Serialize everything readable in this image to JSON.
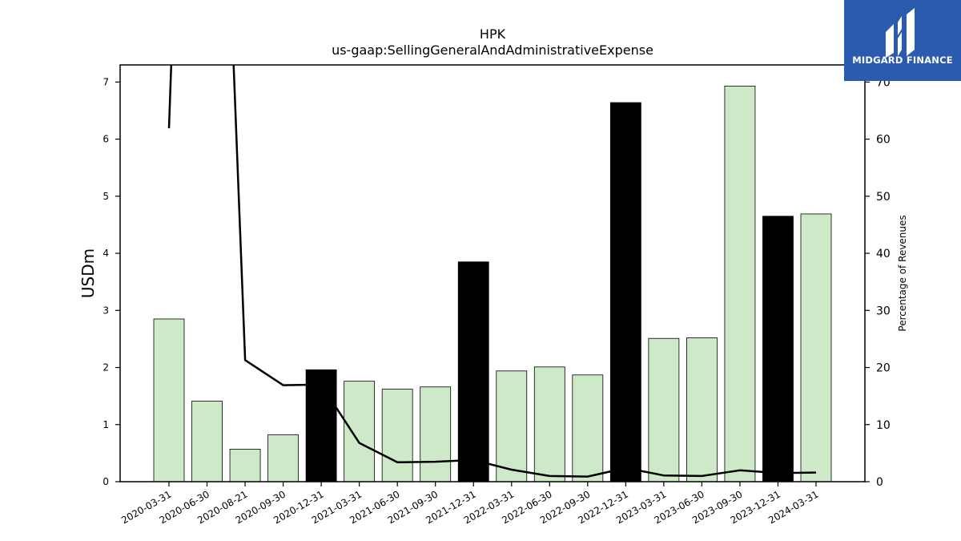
{
  "chart_data": {
    "type": "bar",
    "title": "HPK",
    "subtitle": "us-gaap:SellingGeneralAndAdministrativeExpense",
    "ylabel": "USDm",
    "y2label": "Percentage of Revenues",
    "ylim": [
      0,
      7.3
    ],
    "y2lim": [
      0,
      73
    ],
    "yticks": [
      0,
      1,
      2,
      3,
      4,
      5,
      6,
      7
    ],
    "y2ticks": [
      0,
      10,
      20,
      30,
      40,
      50,
      60,
      70
    ],
    "categories": [
      "2020-03-31",
      "2020-06-30",
      "2020-08-21",
      "2020-09-30",
      "2020-12-31",
      "2021-03-31",
      "2021-06-30",
      "2021-09-30",
      "2021-12-31",
      "2022-03-31",
      "2022-06-30",
      "2022-09-30",
      "2022-12-31",
      "2023-03-31",
      "2023-06-30",
      "2023-09-30",
      "2023-12-31",
      "2024-03-31"
    ],
    "values": [
      2.85,
      1.41,
      0.57,
      0.82,
      1.96,
      1.76,
      1.62,
      1.66,
      3.85,
      1.94,
      2.01,
      1.87,
      6.64,
      2.51,
      2.52,
      6.93,
      4.65,
      4.69
    ],
    "bar_colors": [
      "#cde9c7",
      "#cde9c7",
      "#cde9c7",
      "#cde9c7",
      "#000000",
      "#cde9c7",
      "#cde9c7",
      "#cde9c7",
      "#000000",
      "#cde9c7",
      "#cde9c7",
      "#cde9c7",
      "#000000",
      "#cde9c7",
      "#cde9c7",
      "#cde9c7",
      "#000000",
      "#cde9c7"
    ],
    "line_series": {
      "axis": "secondary",
      "values": [
        61.9,
        90,
        90,
        21.3,
        16.9,
        17.0,
        6.8,
        3.4,
        3.5,
        3.8,
        2.1,
        1.0,
        0.9,
        2.4,
        1.1,
        1.0,
        2.0,
        1.5,
        1.6
      ]
    },
    "line_x": [
      0,
      0.15,
      1.6,
      2,
      3,
      4,
      5,
      6,
      7,
      8,
      9,
      10,
      11,
      12,
      13,
      14,
      15,
      16,
      17
    ],
    "grid": false
  },
  "logo": {
    "text": "MIDGARD FINANCE"
  }
}
